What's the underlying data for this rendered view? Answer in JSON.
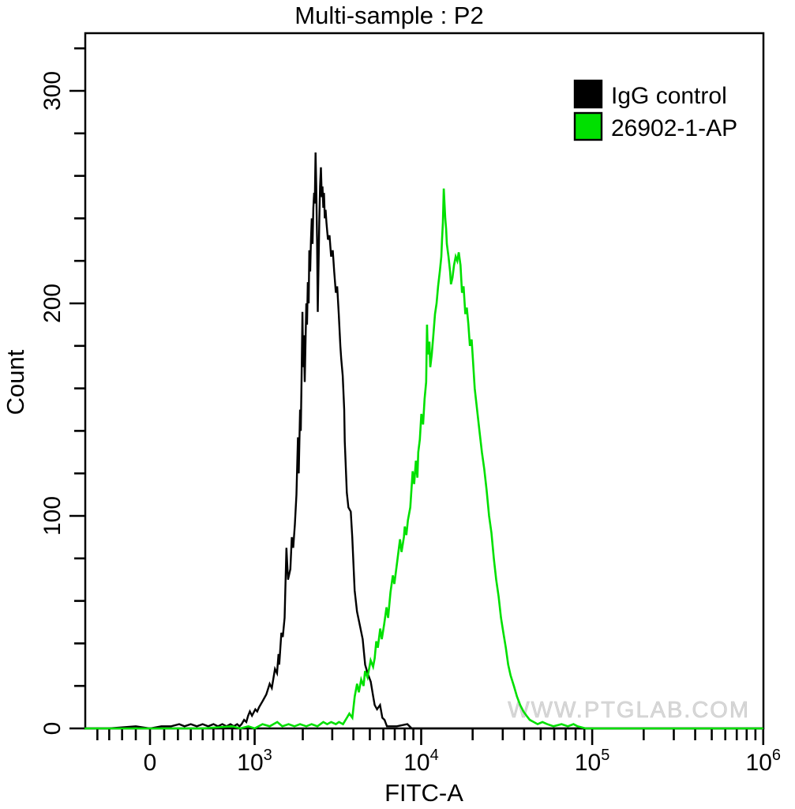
{
  "title": "Multi-sample : P2",
  "watermark": "WWW.PTGLAB.COM",
  "chart_data": {
    "type": "line",
    "subtype": "flow_cytometry_histogram_overlay",
    "title": "Multi-sample : P2",
    "xlabel": "FITC-A",
    "ylabel": "Count",
    "x_scale": "biexponential (linear around 0, log10 above 10^3)",
    "x_range": [
      -530,
      1000000
    ],
    "x_major_ticks": [
      {
        "value": 0,
        "label": "0"
      },
      {
        "value": 1000,
        "label": "10^3"
      },
      {
        "value": 10000,
        "label": "10^4"
      },
      {
        "value": 100000,
        "label": "10^5"
      },
      {
        "value": 1000000,
        "label": "10^6"
      }
    ],
    "x_minor_ticks": [
      -400,
      -300,
      -200,
      -100,
      100,
      200,
      300,
      400,
      500,
      600,
      700,
      800,
      900,
      2000,
      3000,
      4000,
      5000,
      6000,
      7000,
      8000,
      9000,
      20000,
      30000,
      40000,
      50000,
      60000,
      70000,
      80000,
      90000,
      200000,
      300000,
      400000,
      500000,
      600000,
      700000,
      800000,
      900000
    ],
    "y_range": [
      0,
      328
    ],
    "y_major_ticks": [
      {
        "value": 0,
        "label": "0"
      },
      {
        "value": 100,
        "label": "100"
      },
      {
        "value": 200,
        "label": "200"
      },
      {
        "value": 300,
        "label": "300"
      }
    ],
    "y_minor_ticks": [
      20,
      40,
      60,
      80,
      120,
      140,
      160,
      180,
      220,
      240,
      260,
      280,
      320
    ],
    "grid": false,
    "legend": {
      "position": "top-right-inside",
      "entries": [
        {
          "label": "IgG control",
          "color": "#000000"
        },
        {
          "label": "26902-1-AP",
          "color": "#00e000"
        }
      ]
    },
    "series": [
      {
        "name": "IgG control",
        "color": "#000000",
        "peak": {
          "x": 2400,
          "count": 271
        },
        "points": [
          [
            -520,
            0
          ],
          [
            -300,
            0
          ],
          [
            -100,
            1
          ],
          [
            0,
            0
          ],
          [
            80,
            1
          ],
          [
            150,
            1
          ],
          [
            210,
            2
          ],
          [
            250,
            1
          ],
          [
            300,
            2
          ],
          [
            350,
            1
          ],
          [
            400,
            2
          ],
          [
            450,
            1
          ],
          [
            500,
            2
          ],
          [
            545,
            1
          ],
          [
            590,
            2
          ],
          [
            635,
            1
          ],
          [
            680,
            2
          ],
          [
            720,
            1
          ],
          [
            760,
            2
          ],
          [
            790,
            1
          ],
          [
            816,
            2
          ],
          [
            850,
            4
          ],
          [
            880,
            3
          ],
          [
            905,
            6
          ],
          [
            930,
            8
          ],
          [
            960,
            6
          ],
          [
            1010,
            9
          ],
          [
            1040,
            8
          ],
          [
            1070,
            10
          ],
          [
            1130,
            13
          ],
          [
            1190,
            16
          ],
          [
            1250,
            21
          ],
          [
            1290,
            19
          ],
          [
            1350,
            28
          ],
          [
            1390,
            26
          ],
          [
            1420,
            35
          ],
          [
            1435,
            30
          ],
          [
            1480,
            45
          ],
          [
            1510,
            43
          ],
          [
            1550,
            52
          ],
          [
            1590,
            85
          ],
          [
            1625,
            70
          ],
          [
            1680,
            75
          ],
          [
            1715,
            90
          ],
          [
            1750,
            85
          ],
          [
            1790,
            96
          ],
          [
            1830,
            110
          ],
          [
            1870,
            137
          ],
          [
            1890,
            120
          ],
          [
            1925,
            150
          ],
          [
            1945,
            140
          ],
          [
            1966,
            165
          ],
          [
            1990,
            196
          ],
          [
            2010,
            170
          ],
          [
            2030,
            185
          ],
          [
            2055,
            163
          ],
          [
            2075,
            180
          ],
          [
            2100,
            200
          ],
          [
            2120,
            190
          ],
          [
            2145,
            210
          ],
          [
            2170,
            200
          ],
          [
            2190,
            225
          ],
          [
            2215,
            215
          ],
          [
            2240,
            230
          ],
          [
            2265,
            240
          ],
          [
            2290,
            228
          ],
          [
            2315,
            245
          ],
          [
            2340,
            252
          ],
          [
            2360,
            247
          ],
          [
            2385,
            271
          ],
          [
            2410,
            255
          ],
          [
            2435,
            230
          ],
          [
            2460,
            196
          ],
          [
            2490,
            220
          ],
          [
            2515,
            240
          ],
          [
            2540,
            255
          ],
          [
            2570,
            264
          ],
          [
            2600,
            250
          ],
          [
            2625,
            255
          ],
          [
            2655,
            245
          ],
          [
            2680,
            252
          ],
          [
            2710,
            240
          ],
          [
            2740,
            244
          ],
          [
            2770,
            238
          ],
          [
            2830,
            230
          ],
          [
            2890,
            232
          ],
          [
            2955,
            222
          ],
          [
            3020,
            225
          ],
          [
            3080,
            215
          ],
          [
            3150,
            205
          ],
          [
            3210,
            208
          ],
          [
            3280,
            195
          ],
          [
            3350,
            180
          ],
          [
            3390,
            174
          ],
          [
            3460,
            166
          ],
          [
            3530,
            150
          ],
          [
            3560,
            135
          ],
          [
            3660,
            111
          ],
          [
            3740,
            104
          ],
          [
            3860,
            102
          ],
          [
            3940,
            90
          ],
          [
            4070,
            65
          ],
          [
            4200,
            55
          ],
          [
            4380,
            48
          ],
          [
            4540,
            42
          ],
          [
            4690,
            30
          ],
          [
            4850,
            26
          ],
          [
            5060,
            22
          ],
          [
            5230,
            15
          ],
          [
            5340,
            11
          ],
          [
            5510,
            9
          ],
          [
            5740,
            11
          ],
          [
            5920,
            5
          ],
          [
            6100,
            4
          ],
          [
            6300,
            1
          ],
          [
            6700,
            1
          ],
          [
            7200,
            1
          ],
          [
            8300,
            2
          ],
          [
            8800,
            0
          ],
          [
            20000,
            0
          ],
          [
            1000000,
            0
          ]
        ]
      },
      {
        "name": "26902-1-AP",
        "color": "#00e000",
        "peak": {
          "x": 13500,
          "count": 254
        },
        "points": [
          [
            -520,
            0
          ],
          [
            0,
            0
          ],
          [
            400,
            0
          ],
          [
            700,
            1
          ],
          [
            800,
            0
          ],
          [
            908,
            1
          ],
          [
            1000,
            0
          ],
          [
            1125,
            2
          ],
          [
            1250,
            1
          ],
          [
            1395,
            3
          ],
          [
            1500,
            1
          ],
          [
            1638,
            2
          ],
          [
            1780,
            1
          ],
          [
            1924,
            2
          ],
          [
            2100,
            1
          ],
          [
            2259,
            2
          ],
          [
            2450,
            1
          ],
          [
            2655,
            3
          ],
          [
            2800,
            2
          ],
          [
            2957,
            3
          ],
          [
            3150,
            2
          ],
          [
            3289,
            3
          ],
          [
            3475,
            2
          ],
          [
            3665,
            5
          ],
          [
            3785,
            7
          ],
          [
            3946,
            5
          ],
          [
            4074,
            15
          ],
          [
            4207,
            21
          ],
          [
            4305,
            17
          ],
          [
            4445,
            23
          ],
          [
            4590,
            20
          ],
          [
            4687,
            27
          ],
          [
            4843,
            24
          ],
          [
            5058,
            32
          ],
          [
            5224,
            29
          ],
          [
            5336,
            33
          ],
          [
            5456,
            41
          ],
          [
            5572,
            38
          ],
          [
            5754,
            47
          ],
          [
            5875,
            42
          ],
          [
            6067,
            49
          ],
          [
            6267,
            57
          ],
          [
            6399,
            52
          ],
          [
            6607,
            64
          ],
          [
            6823,
            72
          ],
          [
            6966,
            68
          ],
          [
            7194,
            77
          ],
          [
            7515,
            89
          ],
          [
            7674,
            83
          ],
          [
            7925,
            90
          ],
          [
            8017,
            95
          ],
          [
            8185,
            91
          ],
          [
            8360,
            98
          ],
          [
            8630,
            104
          ],
          [
            8912,
            121
          ],
          [
            9101,
            115
          ],
          [
            9310,
            126
          ],
          [
            9506,
            118
          ],
          [
            9616,
            130
          ],
          [
            9817,
            136
          ],
          [
            10023,
            148
          ],
          [
            10257,
            143
          ],
          [
            10471,
            155
          ],
          [
            10691,
            163
          ],
          [
            10814,
            190
          ],
          [
            10940,
            176
          ],
          [
            11169,
            182
          ],
          [
            11298,
            170
          ],
          [
            11534,
            176
          ],
          [
            11776,
            185
          ],
          [
            12050,
            195
          ],
          [
            12303,
            200
          ],
          [
            12560,
            208
          ],
          [
            12853,
            215
          ],
          [
            13122,
            222
          ],
          [
            13243,
            230
          ],
          [
            13397,
            238
          ],
          [
            13551,
            254
          ],
          [
            13677,
            248
          ],
          [
            13836,
            240
          ],
          [
            13996,
            235
          ],
          [
            14125,
            228
          ],
          [
            14454,
            222
          ],
          [
            14757,
            215
          ],
          [
            14928,
            209
          ],
          [
            15240,
            212
          ],
          [
            15560,
            218
          ],
          [
            15922,
            222
          ],
          [
            16256,
            220
          ],
          [
            16596,
            224
          ],
          [
            16982,
            218
          ],
          [
            17338,
            205
          ],
          [
            17701,
            208
          ],
          [
            18113,
            195
          ],
          [
            18493,
            198
          ],
          [
            18880,
            190
          ],
          [
            19275,
            180
          ],
          [
            19724,
            183
          ],
          [
            20137,
            172
          ],
          [
            20559,
            160
          ],
          [
            21232,
            150
          ],
          [
            21928,
            140
          ],
          [
            22646,
            130
          ],
          [
            23388,
            122
          ],
          [
            24153,
            112
          ],
          [
            24944,
            100
          ],
          [
            25760,
            92
          ],
          [
            26603,
            80
          ],
          [
            27474,
            70
          ],
          [
            28373,
            62
          ],
          [
            29302,
            52
          ],
          [
            30261,
            45
          ],
          [
            31251,
            38
          ],
          [
            32274,
            30
          ],
          [
            33330,
            25
          ],
          [
            34829,
            20
          ],
          [
            36333,
            15
          ],
          [
            37924,
            11
          ],
          [
            39620,
            8
          ],
          [
            41305,
            6
          ],
          [
            43152,
            4
          ],
          [
            45499,
            3
          ],
          [
            47973,
            2
          ],
          [
            51168,
            3
          ],
          [
            54576,
            2
          ],
          [
            59429,
            1
          ],
          [
            66222,
            2
          ],
          [
            72111,
            1
          ],
          [
            77750,
            2
          ],
          [
            82035,
            1
          ],
          [
            91411,
            0
          ],
          [
            200000,
            0
          ],
          [
            1000000,
            0
          ]
        ]
      }
    ]
  }
}
